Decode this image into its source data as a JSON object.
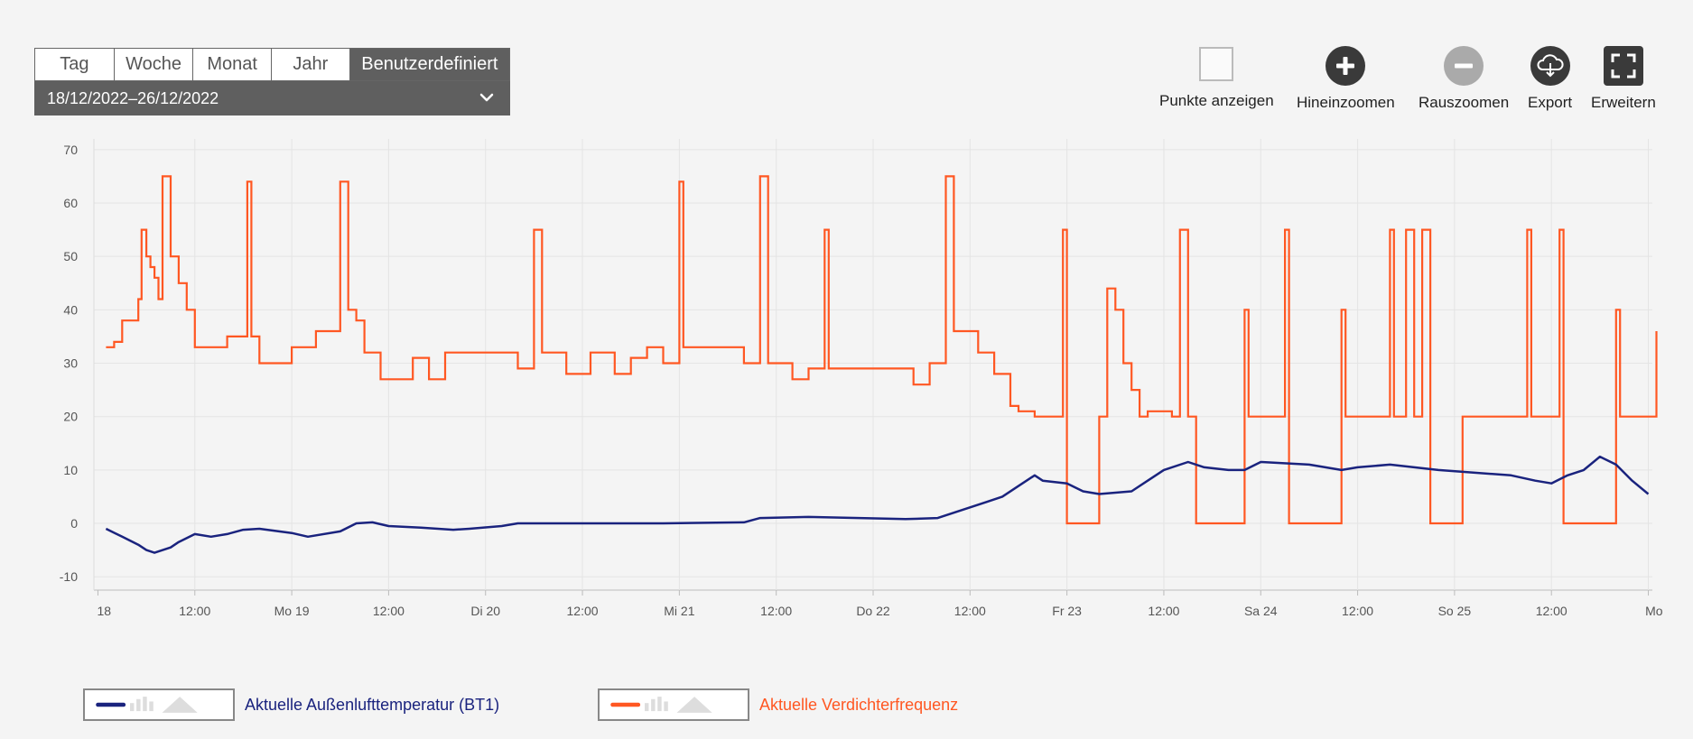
{
  "range_tabs": [
    "Tag",
    "Woche",
    "Monat",
    "Jahr",
    "Benutzerdefiniert"
  ],
  "active_tab": "Benutzerdefiniert",
  "date_range": "18/12/2022–26/12/2022",
  "toolbar": {
    "show_points": "Punkte anzeigen",
    "zoom_in": "Hineinzoomen",
    "zoom_out": "Rauszoomen",
    "export": "Export",
    "expand": "Erweitern"
  },
  "colors": {
    "temperature": "#1a237e",
    "frequency": "#ff5722",
    "grid": "#e4e4e4",
    "axis_text": "#555555"
  },
  "chart_data": {
    "type": "line",
    "y_ticks": [
      70,
      60,
      50,
      40,
      30,
      20,
      10,
      0,
      -10
    ],
    "ylim": [
      -12.5,
      72
    ],
    "x_ticks": [
      {
        "label": "18",
        "x": 0
      },
      {
        "label": "12:00",
        "x": 12
      },
      {
        "label": "Mo 19",
        "x": 24
      },
      {
        "label": "12:00",
        "x": 36
      },
      {
        "label": "Di 20",
        "x": 48
      },
      {
        "label": "12:00",
        "x": 60
      },
      {
        "label": "Mi 21",
        "x": 72
      },
      {
        "label": "12:00",
        "x": 84
      },
      {
        "label": "Do 22",
        "x": 96
      },
      {
        "label": "12:00",
        "x": 108
      },
      {
        "label": "Fr 23",
        "x": 120
      },
      {
        "label": "12:00",
        "x": 132
      },
      {
        "label": "Sa 24",
        "x": 144
      },
      {
        "label": "12:00",
        "x": 156
      },
      {
        "label": "So 25",
        "x": 168
      },
      {
        "label": "12:00",
        "x": 180
      },
      {
        "label": "Mo",
        "x": 192
      }
    ],
    "xlim": [
      -0.5,
      192.5
    ],
    "series": [
      {
        "name": "Aktuelle Außenlufttemperatur (BT1)",
        "key": "temperature",
        "step": false,
        "points": [
          [
            1,
            -1
          ],
          [
            3,
            -2.5
          ],
          [
            5,
            -4
          ],
          [
            6,
            -5
          ],
          [
            7,
            -5.5
          ],
          [
            9,
            -4.5
          ],
          [
            10,
            -3.5
          ],
          [
            12,
            -2
          ],
          [
            14,
            -2.5
          ],
          [
            16,
            -2
          ],
          [
            18,
            -1.2
          ],
          [
            20,
            -1
          ],
          [
            24,
            -1.8
          ],
          [
            26,
            -2.5
          ],
          [
            30,
            -1.5
          ],
          [
            32,
            0
          ],
          [
            34,
            0.2
          ],
          [
            36,
            -0.5
          ],
          [
            40,
            -0.8
          ],
          [
            44,
            -1.2
          ],
          [
            46,
            -1
          ],
          [
            50,
            -0.5
          ],
          [
            52,
            0
          ],
          [
            60,
            0
          ],
          [
            70,
            0
          ],
          [
            80,
            0.2
          ],
          [
            82,
            1
          ],
          [
            88,
            1.2
          ],
          [
            100,
            0.8
          ],
          [
            104,
            1
          ],
          [
            106,
            2
          ],
          [
            108,
            3
          ],
          [
            110,
            4
          ],
          [
            112,
            5
          ],
          [
            114,
            7
          ],
          [
            116,
            9
          ],
          [
            117,
            8
          ],
          [
            120,
            7.5
          ],
          [
            122,
            6
          ],
          [
            124,
            5.5
          ],
          [
            128,
            6
          ],
          [
            130,
            8
          ],
          [
            132,
            10
          ],
          [
            135,
            11.5
          ],
          [
            137,
            10.5
          ],
          [
            140,
            10
          ],
          [
            142,
            10
          ],
          [
            144,
            11.5
          ],
          [
            150,
            11
          ],
          [
            154,
            10
          ],
          [
            156,
            10.5
          ],
          [
            160,
            11
          ],
          [
            166,
            10
          ],
          [
            175,
            9
          ],
          [
            178,
            8
          ],
          [
            180,
            7.5
          ],
          [
            182,
            9
          ],
          [
            184,
            10
          ],
          [
            186,
            12.5
          ],
          [
            188,
            11
          ],
          [
            190,
            8
          ],
          [
            192,
            5.5
          ]
        ]
      },
      {
        "name": "Aktuelle Verdichterfrequenz",
        "key": "frequency",
        "step": true,
        "points": [
          [
            1,
            33
          ],
          [
            2,
            34
          ],
          [
            3,
            38
          ],
          [
            5,
            42
          ],
          [
            5.4,
            55
          ],
          [
            6,
            50
          ],
          [
            6.5,
            48
          ],
          [
            7,
            46
          ],
          [
            7.5,
            42
          ],
          [
            8,
            65
          ],
          [
            9,
            50
          ],
          [
            10,
            45
          ],
          [
            11,
            40
          ],
          [
            12,
            33
          ],
          [
            16,
            35
          ],
          [
            18.5,
            64
          ],
          [
            19,
            35
          ],
          [
            20,
            30
          ],
          [
            24,
            33
          ],
          [
            27,
            36
          ],
          [
            30,
            64
          ],
          [
            31,
            40
          ],
          [
            32,
            38
          ],
          [
            33,
            32
          ],
          [
            35,
            27
          ],
          [
            39,
            31
          ],
          [
            41,
            27
          ],
          [
            43,
            32
          ],
          [
            52,
            29
          ],
          [
            54,
            55
          ],
          [
            55,
            32
          ],
          [
            58,
            28
          ],
          [
            61,
            32
          ],
          [
            64,
            28
          ],
          [
            66,
            31
          ],
          [
            68,
            33
          ],
          [
            70,
            30
          ],
          [
            72,
            64
          ],
          [
            72.5,
            33
          ],
          [
            80,
            30
          ],
          [
            82,
            65
          ],
          [
            83,
            30
          ],
          [
            86,
            27
          ],
          [
            88,
            29
          ],
          [
            90,
            55
          ],
          [
            90.5,
            29
          ],
          [
            101,
            26
          ],
          [
            103,
            30
          ],
          [
            105,
            65
          ],
          [
            106,
            36
          ],
          [
            109,
            32
          ],
          [
            111,
            28
          ],
          [
            113,
            22
          ],
          [
            114,
            21
          ],
          [
            116,
            20
          ],
          [
            119,
            20
          ],
          [
            119.5,
            55
          ],
          [
            120,
            0
          ],
          [
            124,
            20
          ],
          [
            125,
            44
          ],
          [
            126,
            40
          ],
          [
            127,
            30
          ],
          [
            128,
            25
          ],
          [
            129,
            20
          ],
          [
            130,
            21
          ],
          [
            133,
            20
          ],
          [
            134,
            55
          ],
          [
            135,
            20
          ],
          [
            136,
            0
          ],
          [
            142,
            40
          ],
          [
            142.5,
            20
          ],
          [
            147,
            55
          ],
          [
            147.5,
            0
          ],
          [
            154,
            40
          ],
          [
            154.5,
            20
          ],
          [
            160,
            55
          ],
          [
            160.5,
            20
          ],
          [
            162,
            55
          ],
          [
            163,
            20
          ],
          [
            164,
            55
          ],
          [
            165,
            0
          ],
          [
            169,
            20
          ],
          [
            177,
            55
          ],
          [
            177.5,
            20
          ],
          [
            181,
            55
          ],
          [
            181.5,
            0
          ],
          [
            188,
            40
          ],
          [
            188.5,
            20
          ],
          [
            193,
            36
          ]
        ]
      }
    ]
  }
}
